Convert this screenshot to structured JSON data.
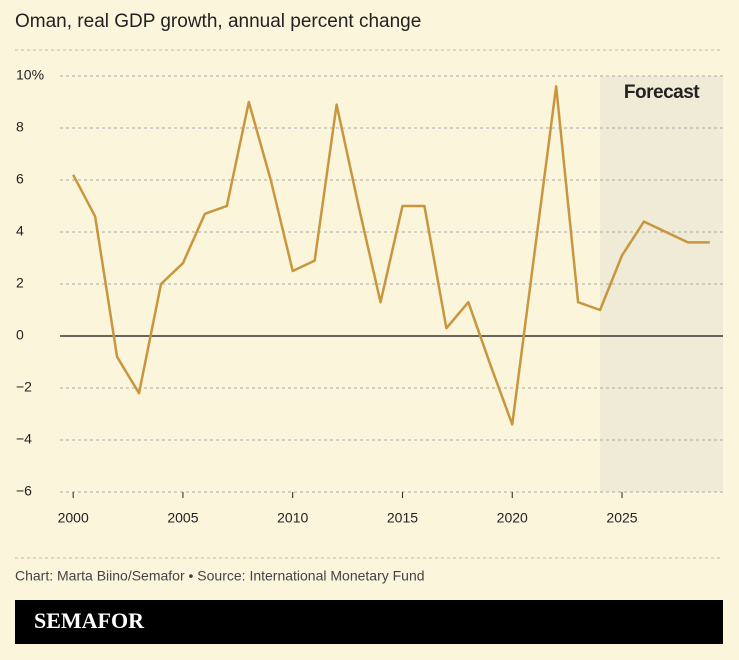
{
  "chart_data": {
    "type": "line",
    "title": "Oman, real GDP growth, annual percent change",
    "x": [
      2000,
      2001,
      2002,
      2003,
      2004,
      2005,
      2006,
      2007,
      2008,
      2009,
      2010,
      2011,
      2012,
      2013,
      2014,
      2015,
      2016,
      2017,
      2018,
      2019,
      2020,
      2021,
      2022,
      2023,
      2024,
      2025,
      2026,
      2027,
      2028,
      2029
    ],
    "values": [
      6.2,
      4.6,
      -0.8,
      -2.2,
      2.0,
      2.8,
      4.7,
      5.0,
      9.0,
      6.0,
      2.5,
      2.9,
      8.9,
      5.0,
      1.3,
      5.0,
      5.0,
      0.3,
      1.3,
      -1.1,
      -3.4,
      3.1,
      9.6,
      1.3,
      1.0,
      3.1,
      4.4,
      4.0,
      3.6,
      3.6
    ],
    "color": "#c8963e",
    "xlim": [
      1999.4,
      2029.6
    ],
    "xticks": [
      2000,
      2005,
      2010,
      2015,
      2020,
      2025
    ],
    "ylim": [
      -6,
      10
    ],
    "yticks": [
      {
        "value": 10,
        "label": "10%"
      },
      8,
      6,
      4,
      2,
      0,
      {
        "value": -2,
        "label": "−2"
      },
      {
        "value": -4,
        "label": "−4"
      },
      {
        "value": -6,
        "label": "−6"
      }
    ],
    "grid": true,
    "forecast": {
      "label": "Forecast",
      "start": 2024
    },
    "source": "Chart: Marta Biino/Semafor • Source: International Monetary Fund"
  },
  "logo": "SEMAFOR"
}
